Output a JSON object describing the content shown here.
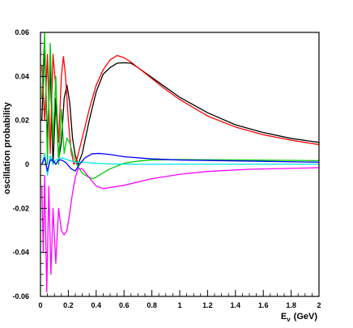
{
  "chart_data": {
    "type": "line",
    "xlabel_main": "E",
    "xlabel_sub": "ν",
    "xlabel_unit": "(GeV)",
    "ylabel": "oscillation probability",
    "xlim": [
      0,
      2
    ],
    "ylim": [
      -0.06,
      0.06
    ],
    "x_ticks": [
      0,
      0.2,
      0.4,
      0.6,
      0.8,
      1,
      1.2,
      1.4,
      1.6,
      1.8,
      2
    ],
    "x_tick_labels": [
      "0",
      "0.2",
      "0.4",
      "0.6",
      "0.8",
      "1",
      "1.2",
      "1.4",
      "1.6",
      "1.8",
      "2"
    ],
    "y_ticks": [
      -0.06,
      -0.04,
      -0.02,
      0,
      0.02,
      0.04,
      0.06
    ],
    "y_tick_labels": [
      "-0.06",
      "-0.04",
      "-0.02",
      "0",
      "0.02",
      "0.04",
      "0.06"
    ],
    "grid": false,
    "legend": "none",
    "series": [
      {
        "color": "#000000",
        "points": [
          [
            0.01,
            0.02
          ],
          [
            0.03,
            0.055
          ],
          [
            0.05,
            0.01
          ],
          [
            0.07,
            0.045
          ],
          [
            0.09,
            0.0
          ],
          [
            0.11,
            0.03
          ],
          [
            0.13,
            0.002
          ],
          [
            0.15,
            0.01
          ],
          [
            0.17,
            0.03
          ],
          [
            0.19,
            0.036
          ],
          [
            0.21,
            0.028
          ],
          [
            0.23,
            0.012
          ],
          [
            0.25,
            0.004
          ],
          [
            0.27,
            0.0
          ],
          [
            0.3,
            0.005
          ],
          [
            0.35,
            0.02
          ],
          [
            0.4,
            0.033
          ],
          [
            0.45,
            0.041
          ],
          [
            0.5,
            0.044
          ],
          [
            0.55,
            0.046
          ],
          [
            0.6,
            0.0462
          ],
          [
            0.65,
            0.046
          ],
          [
            0.7,
            0.044
          ],
          [
            0.8,
            0.0395
          ],
          [
            0.9,
            0.035
          ],
          [
            1.0,
            0.0305
          ],
          [
            1.2,
            0.0235
          ],
          [
            1.4,
            0.018
          ],
          [
            1.6,
            0.0145
          ],
          [
            1.8,
            0.0118
          ],
          [
            2.0,
            0.01
          ]
        ]
      },
      {
        "color": "#ff0000",
        "points": [
          [
            0.01,
            0.045
          ],
          [
            0.03,
            0.02
          ],
          [
            0.05,
            0.05
          ],
          [
            0.07,
            0.005
          ],
          [
            0.09,
            0.05
          ],
          [
            0.11,
            0.035
          ],
          [
            0.13,
            0.01
          ],
          [
            0.15,
            0.04
          ],
          [
            0.165,
            0.049
          ],
          [
            0.18,
            0.04
          ],
          [
            0.2,
            0.02
          ],
          [
            0.22,
            0.006
          ],
          [
            0.24,
            0.0
          ],
          [
            0.26,
            0.002
          ],
          [
            0.3,
            0.012
          ],
          [
            0.35,
            0.025
          ],
          [
            0.4,
            0.036
          ],
          [
            0.45,
            0.043
          ],
          [
            0.5,
            0.0475
          ],
          [
            0.55,
            0.0495
          ],
          [
            0.6,
            0.0485
          ],
          [
            0.65,
            0.0465
          ],
          [
            0.7,
            0.044
          ],
          [
            0.8,
            0.039
          ],
          [
            0.9,
            0.034
          ],
          [
            1.0,
            0.0295
          ],
          [
            1.2,
            0.022
          ],
          [
            1.4,
            0.017
          ],
          [
            1.6,
            0.0135
          ],
          [
            1.8,
            0.011
          ],
          [
            2.0,
            0.009
          ]
        ]
      },
      {
        "color": "#00cc00",
        "points": [
          [
            0.01,
            0.03
          ],
          [
            0.03,
            0.06
          ],
          [
            0.05,
            0.0
          ],
          [
            0.07,
            0.055
          ],
          [
            0.09,
            0.01
          ],
          [
            0.11,
            0.04
          ],
          [
            0.13,
            0.0
          ],
          [
            0.15,
            0.025
          ],
          [
            0.17,
            0.005
          ],
          [
            0.19,
            0.012
          ],
          [
            0.21,
            0.01
          ],
          [
            0.23,
            0.005
          ],
          [
            0.26,
            0.0
          ],
          [
            0.3,
            -0.004
          ],
          [
            0.35,
            -0.006
          ],
          [
            0.38,
            -0.0065
          ],
          [
            0.42,
            -0.005
          ],
          [
            0.5,
            -0.002
          ],
          [
            0.6,
            0.0005
          ],
          [
            0.7,
            0.0015
          ],
          [
            0.8,
            0.002
          ],
          [
            1.0,
            0.0022
          ],
          [
            1.2,
            0.0021
          ],
          [
            1.5,
            0.002
          ],
          [
            2.0,
            0.0017
          ]
        ]
      },
      {
        "color": "#00e5e5",
        "points": [
          [
            0.01,
            0.0
          ],
          [
            0.03,
            0.005
          ],
          [
            0.05,
            -0.005
          ],
          [
            0.07,
            0.004
          ],
          [
            0.09,
            0.0
          ],
          [
            0.11,
            0.002
          ],
          [
            0.15,
            0.003
          ],
          [
            0.2,
            0.002
          ],
          [
            0.25,
            0.001
          ],
          [
            0.3,
            0.001
          ],
          [
            0.4,
            0.0005
          ],
          [
            0.5,
            0.0002
          ],
          [
            0.7,
            0.0001
          ],
          [
            1.0,
            0.0001
          ],
          [
            2.0,
            0.0001
          ]
        ]
      },
      {
        "color": "#0000ff",
        "points": [
          [
            0.01,
            0.0
          ],
          [
            0.03,
            0.003
          ],
          [
            0.05,
            -0.003
          ],
          [
            0.07,
            0.002
          ],
          [
            0.09,
            0.002
          ],
          [
            0.11,
            0.0
          ],
          [
            0.13,
            0.002
          ],
          [
            0.15,
            0.002
          ],
          [
            0.18,
            0.001
          ],
          [
            0.22,
            -0.002
          ],
          [
            0.25,
            -0.003
          ],
          [
            0.28,
            0.0
          ],
          [
            0.32,
            0.003
          ],
          [
            0.37,
            0.0048
          ],
          [
            0.42,
            0.005
          ],
          [
            0.5,
            0.0045
          ],
          [
            0.6,
            0.0035
          ],
          [
            0.8,
            0.0025
          ],
          [
            1.0,
            0.002
          ],
          [
            1.5,
            0.0015
          ],
          [
            2.0,
            0.001
          ]
        ]
      },
      {
        "color": "#ff00ff",
        "points": [
          [
            0.01,
            -0.01
          ],
          [
            0.02,
            -0.04
          ],
          [
            0.03,
            -0.005
          ],
          [
            0.045,
            -0.058
          ],
          [
            0.06,
            -0.01
          ],
          [
            0.075,
            -0.05
          ],
          [
            0.09,
            -0.02
          ],
          [
            0.11,
            -0.045
          ],
          [
            0.13,
            -0.02
          ],
          [
            0.15,
            -0.03
          ],
          [
            0.17,
            -0.032
          ],
          [
            0.19,
            -0.03
          ],
          [
            0.21,
            -0.022
          ],
          [
            0.23,
            -0.013
          ],
          [
            0.25,
            -0.006
          ],
          [
            0.27,
            -0.002
          ],
          [
            0.3,
            -0.002
          ],
          [
            0.35,
            -0.006
          ],
          [
            0.4,
            -0.0098
          ],
          [
            0.45,
            -0.011
          ],
          [
            0.5,
            -0.0105
          ],
          [
            0.6,
            -0.0095
          ],
          [
            0.8,
            -0.0065
          ],
          [
            1.0,
            -0.0045
          ],
          [
            1.2,
            -0.0032
          ],
          [
            1.5,
            -0.0022
          ],
          [
            2.0,
            -0.0015
          ]
        ]
      }
    ]
  }
}
